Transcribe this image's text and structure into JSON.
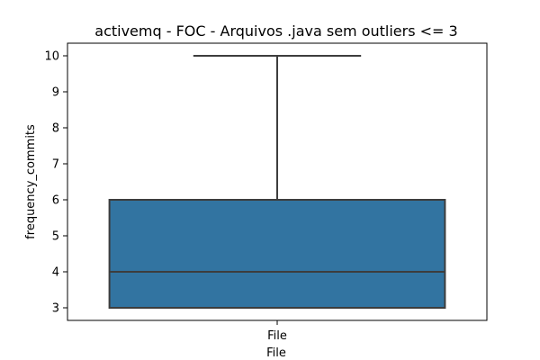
{
  "chart_data": {
    "type": "box",
    "title": "activemq - FOC - Arquivos .java sem outliers <= 3",
    "xlabel": "File",
    "ylabel": "frequency_commits",
    "categories": [
      "File"
    ],
    "boxes": [
      {
        "category": "File",
        "min": 3,
        "q1": 3,
        "median": 4,
        "q3": 6,
        "max": 10
      }
    ],
    "ylim": [
      2.65,
      10.35
    ],
    "yticks": [
      3,
      4,
      5,
      6,
      7,
      8,
      9,
      10
    ],
    "grid": false,
    "colors": {
      "box_fill": "#3274a1",
      "box_edge": "#3d3d3d",
      "axis": "#000000"
    }
  }
}
